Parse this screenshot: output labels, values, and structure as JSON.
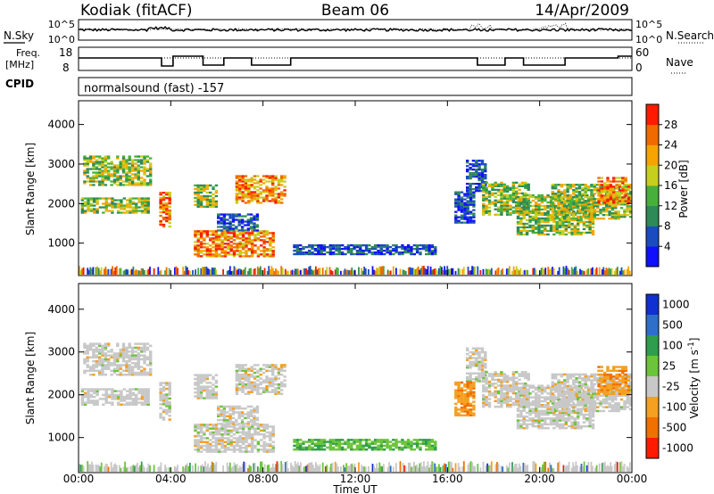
{
  "header": {
    "station": "Kodiak (fitACF)",
    "beam": "Beam 06",
    "date": "14/Apr/2009"
  },
  "sky_panel": {
    "left_label": "N.Sky",
    "left_ticks": [
      "10^5",
      "10^0"
    ],
    "right_ticks": [
      "10^5",
      "10^0"
    ],
    "right_label": "N.Search"
  },
  "freq_panel": {
    "left_label_1": "Freq.",
    "left_label_2": "[MHz]",
    "left_ticks": [
      "18",
      "8"
    ],
    "right_ticks": [
      "60",
      "0"
    ],
    "right_label": "Nave",
    "cpid_label": "CPID"
  },
  "mode_panel": {
    "text": "normalsound (fast) -157"
  },
  "chart_data": [
    {
      "type": "heatmap",
      "title": "",
      "xlabel": "",
      "ylabel": "Slant Range [km]",
      "ylim": [
        180,
        4600
      ],
      "yticks": [
        "1000",
        "2000",
        "3000",
        "4000"
      ],
      "colorbar": {
        "label": "Power [dB]",
        "ticks": [
          "4",
          "8",
          "12",
          "16",
          "20",
          "24",
          "28"
        ],
        "colors": [
          "#1010ff",
          "#1a4cbf",
          "#2e8a57",
          "#47b03c",
          "#c7cf1e",
          "#f5a400",
          "#f06a00",
          "#ff1a00"
        ]
      },
      "echo_regions": [
        {
          "t0": 0.0,
          "t1": 3.0,
          "r0": 1800,
          "r1": 3200,
          "level": "low-mid"
        },
        {
          "t0": 3.5,
          "t1": 3.9,
          "r0": 1400,
          "r1": 2300,
          "level": "high"
        },
        {
          "t0": 5.0,
          "t1": 8.5,
          "r0": 650,
          "r1": 1350,
          "level": "high"
        },
        {
          "t0": 5.0,
          "t1": 6.0,
          "r0": 1900,
          "r1": 2500,
          "level": "mid"
        },
        {
          "t0": 6.8,
          "t1": 9.0,
          "r0": 2000,
          "r1": 2700,
          "level": "high"
        },
        {
          "t0": 9.3,
          "t1": 15.5,
          "r0": 700,
          "r1": 1000,
          "level": "low"
        },
        {
          "t0": 16.8,
          "t1": 18.5,
          "r0": 1500,
          "r1": 3100,
          "level": "low"
        },
        {
          "t0": 17.5,
          "t1": 23.9,
          "r0": 1200,
          "r1": 2600,
          "level": "mid"
        }
      ]
    },
    {
      "type": "heatmap",
      "title": "",
      "xlabel": "Time UT",
      "ylabel": "Slant Range [km]",
      "ylim": [
        180,
        4600
      ],
      "yticks": [
        "1000",
        "2000",
        "3000",
        "4000"
      ],
      "xticks": [
        "00:00",
        "04:00",
        "08:00",
        "12:00",
        "16:00",
        "20:00",
        "00:00"
      ],
      "colorbar": {
        "label": "Velocity [m s^-1]",
        "ticks": [
          "1000",
          "500",
          "100",
          "25",
          "-25",
          "-100",
          "-500",
          "-1000"
        ],
        "colors": [
          "#1030d0",
          "#2e6fc8",
          "#2e9e4e",
          "#6cc43a",
          "#c8c8c8",
          "#f5a020",
          "#f07000",
          "#ff1a00"
        ]
      },
      "echo_regions": [
        {
          "t0": 0.0,
          "t1": 3.0,
          "r0": 1800,
          "r1": 3200,
          "v": "~0 (grey)"
        },
        {
          "t0": 5.0,
          "t1": 8.5,
          "r0": 650,
          "r1": 1350,
          "v": "~0 (grey) with positive edges"
        },
        {
          "t0": 9.3,
          "t1": 15.5,
          "r0": 700,
          "r1": 1000,
          "v": "positive (green)"
        },
        {
          "t0": 16.5,
          "t1": 17.5,
          "r0": 1500,
          "r1": 2400,
          "v": "negative (orange)"
        },
        {
          "t0": 22.5,
          "t1": 23.9,
          "r0": 2000,
          "r1": 2600,
          "v": "negative (orange)"
        }
      ]
    }
  ],
  "colors": {
    "frame": "#000000",
    "background": "#ffffff"
  }
}
